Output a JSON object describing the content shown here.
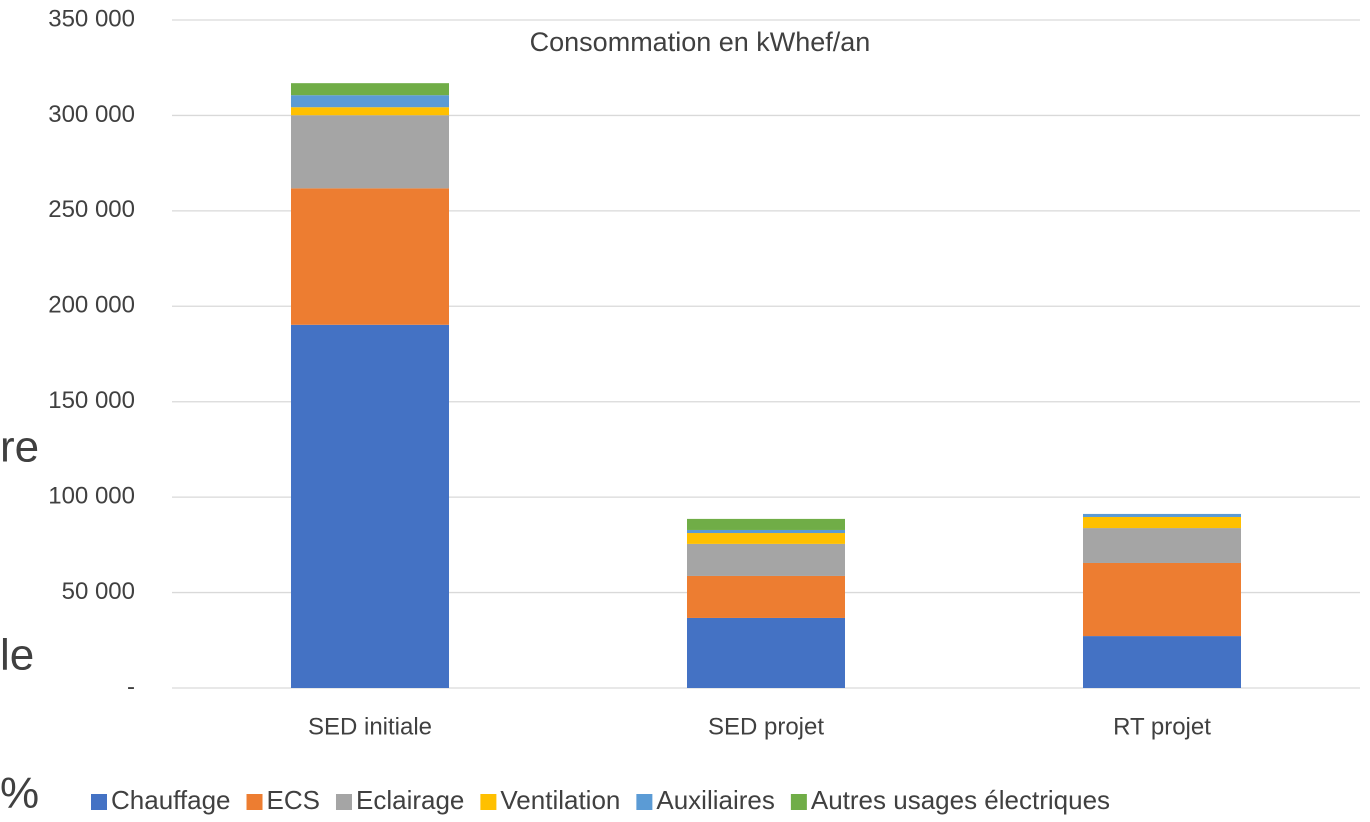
{
  "chart_data": {
    "type": "stacked_bar",
    "title": "Consommation en kWhef/an",
    "categories": [
      "SED initiale",
      "SED projet",
      "RT projet"
    ],
    "series": [
      {
        "name": "Chauffage",
        "color": "#4472c4",
        "values": [
          190300,
          36700,
          27200
        ]
      },
      {
        "name": "ECS",
        "color": "#ed7d31",
        "values": [
          71500,
          22000,
          38300
        ]
      },
      {
        "name": "Eclairage",
        "color": "#a5a5a5",
        "values": [
          38300,
          16800,
          18300
        ]
      },
      {
        "name": "Ventilation",
        "color": "#ffc000",
        "values": [
          4200,
          5700,
          5800
        ]
      },
      {
        "name": "Auxiliaires",
        "color": "#5b9bd5",
        "values": [
          6300,
          1600,
          1600
        ]
      },
      {
        "name": "Autres usages électriques",
        "color": "#70ad47",
        "values": [
          6300,
          5800,
          0
        ]
      }
    ],
    "ylim": [
      0,
      350000
    ],
    "yticks": [
      {
        "value": 0,
        "label": "-"
      },
      {
        "value": 50000,
        "label": "50 000"
      },
      {
        "value": 100000,
        "label": "100 000"
      },
      {
        "value": 150000,
        "label": "150 000"
      },
      {
        "value": 200000,
        "label": "200 000"
      },
      {
        "value": 250000,
        "label": "250 000"
      },
      {
        "value": 300000,
        "label": "300 000"
      },
      {
        "value": 350000,
        "label": "350 000"
      }
    ],
    "grid": true,
    "legend": "bottom"
  },
  "background_fragments": [
    "re",
    "le",
    "%"
  ]
}
